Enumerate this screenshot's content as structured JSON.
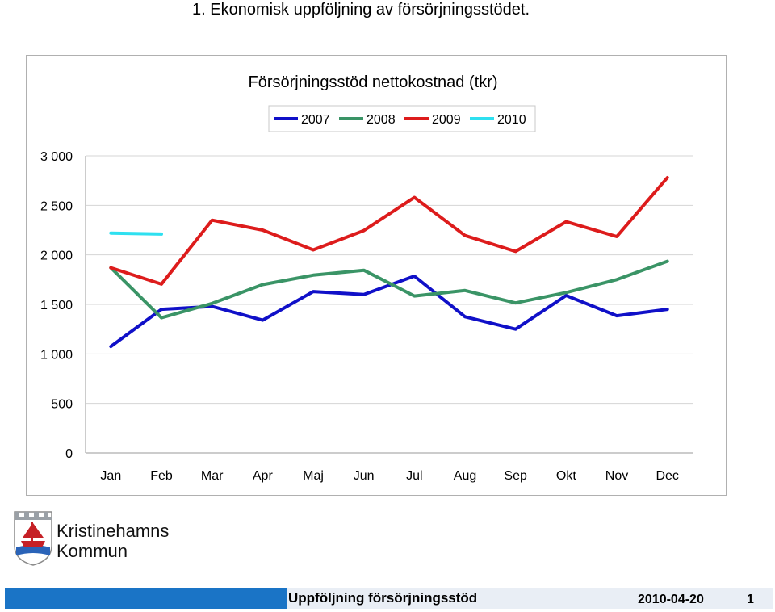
{
  "page": {
    "heading": "1. Ekonomisk uppföljning av försörjningsstödet."
  },
  "logo": {
    "line1": "Kristinehamns",
    "line2": "Kommun"
  },
  "footer": {
    "title": "Uppföljning försörjningsstöd",
    "date": "2010-04-20",
    "page": "1"
  },
  "chart_data": {
    "type": "line",
    "title": "Försörjningsstöd nettokostnad (tkr)",
    "xlabel": "",
    "ylabel": "",
    "categories": [
      "Jan",
      "Feb",
      "Mar",
      "Apr",
      "Maj",
      "Jun",
      "Jul",
      "Aug",
      "Sep",
      "Okt",
      "Nov",
      "Dec"
    ],
    "ylim": [
      0,
      3000
    ],
    "yticks": [
      0,
      500,
      1000,
      1500,
      2000,
      2500,
      3000
    ],
    "ytick_labels": [
      "0",
      "500",
      "1 000",
      "1 500",
      "2 000",
      "2 500",
      "3 000"
    ],
    "grid": true,
    "legend_position": "top",
    "series": [
      {
        "name": "2007",
        "color": "#1010c8",
        "values": [
          1075,
          1450,
          1480,
          1340,
          1630,
          1600,
          1785,
          1375,
          1250,
          1590,
          1385,
          1450
        ]
      },
      {
        "name": "2008",
        "color": "#3a9466",
        "values": [
          1870,
          1365,
          1510,
          1700,
          1795,
          1845,
          1585,
          1640,
          1515,
          1620,
          1750,
          1935
        ]
      },
      {
        "name": "2009",
        "color": "#dd1c1c",
        "values": [
          1870,
          1705,
          2350,
          2250,
          2050,
          2245,
          2580,
          2195,
          2035,
          2335,
          2185,
          2780
        ]
      },
      {
        "name": "2010",
        "color": "#2ee0f0",
        "values": [
          2220,
          2210,
          null,
          null,
          null,
          null,
          null,
          null,
          null,
          null,
          null,
          null
        ]
      }
    ]
  }
}
